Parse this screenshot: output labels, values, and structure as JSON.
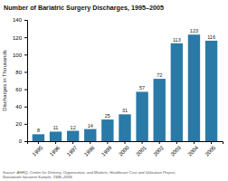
{
  "chart_data": {
    "type": "bar",
    "title": "Number of Bariatric Surgery Discharges, 1995–2005",
    "categories": [
      "1995",
      "1996",
      "1997",
      "1998",
      "1999",
      "2000",
      "2001",
      "2002",
      "2003",
      "2004",
      "2005"
    ],
    "values": [
      8,
      11,
      12,
      14,
      25,
      31,
      57,
      72,
      113,
      123,
      116
    ],
    "color": "#2a7aa8",
    "ylabel": "Discharges in Thousands",
    "ylim": [
      0,
      140
    ],
    "yticks": [
      0,
      20,
      40,
      60,
      80,
      100,
      120,
      140
    ],
    "annotations": [
      "Source:  AHRQ, Center for Delivery, Organization, and Markets, Healthcare Cost and Utilization Project,",
      "Nationwide Inpatient Sample, 1995–2005."
    ],
    "data_labels": true,
    "grid": false
  }
}
